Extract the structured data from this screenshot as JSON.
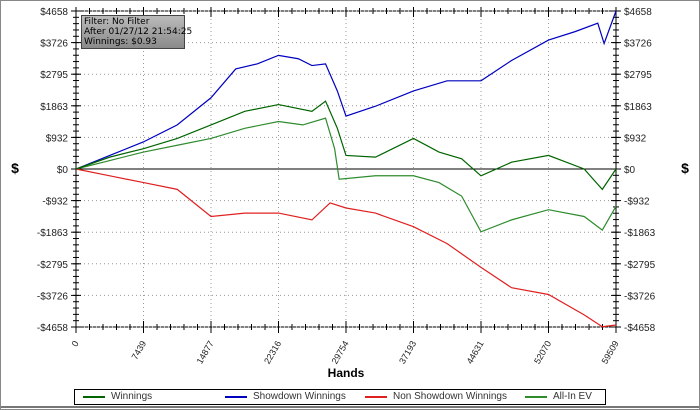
{
  "tooltip": {
    "line1": "Filter: No Filter",
    "line2": "After 01/27/12 21:54:25",
    "line3": "Winnings: $0.93"
  },
  "chart_data": {
    "type": "line",
    "xlabel": "Hands",
    "ylabel": "$",
    "xlim": [
      0,
      59509
    ],
    "ylim": [
      -4658,
      4658
    ],
    "x_ticks": [
      "0",
      "7439",
      "14877",
      "22316",
      "29754",
      "37193",
      "44631",
      "52070",
      "59509"
    ],
    "y_ticks": [
      "$4658",
      "$3726",
      "$2795",
      "$1863",
      "$932",
      "$0",
      "-$932",
      "-$1863",
      "-$2795",
      "-$3726",
      "-$4658"
    ],
    "grid": true,
    "legend_position": "bottom",
    "series": [
      {
        "name": "Winnings",
        "color": "#006400",
        "points": [
          [
            0,
            0
          ],
          [
            3720,
            350
          ],
          [
            7439,
            600
          ],
          [
            11158,
            900
          ],
          [
            14877,
            1300
          ],
          [
            18600,
            1700
          ],
          [
            22316,
            1900
          ],
          [
            26000,
            1700
          ],
          [
            27500,
            2000
          ],
          [
            28800,
            1200
          ],
          [
            29754,
            400
          ],
          [
            33000,
            350
          ],
          [
            37193,
            900
          ],
          [
            40000,
            500
          ],
          [
            42500,
            300
          ],
          [
            44631,
            -200
          ],
          [
            48000,
            200
          ],
          [
            52070,
            400
          ],
          [
            56000,
            0
          ],
          [
            58000,
            -600
          ],
          [
            59509,
            0
          ]
        ]
      },
      {
        "name": "Showdown Winnings",
        "color": "#0000c0",
        "points": [
          [
            0,
            0
          ],
          [
            3720,
            400
          ],
          [
            7439,
            800
          ],
          [
            11158,
            1300
          ],
          [
            14877,
            2100
          ],
          [
            17600,
            2950
          ],
          [
            20000,
            3100
          ],
          [
            22316,
            3350
          ],
          [
            24500,
            3250
          ],
          [
            26000,
            3050
          ],
          [
            27500,
            3100
          ],
          [
            28800,
            2300
          ],
          [
            29754,
            1560
          ],
          [
            33000,
            1850
          ],
          [
            37193,
            2300
          ],
          [
            40900,
            2600
          ],
          [
            44631,
            2600
          ],
          [
            48000,
            3200
          ],
          [
            52070,
            3800
          ],
          [
            55000,
            4050
          ],
          [
            57500,
            4300
          ],
          [
            58200,
            3700
          ],
          [
            59509,
            4658
          ]
        ]
      },
      {
        "name": "Non Showdown Winnings",
        "color": "#e02020",
        "points": [
          [
            0,
            0
          ],
          [
            3720,
            -200
          ],
          [
            7439,
            -400
          ],
          [
            11158,
            -600
          ],
          [
            14877,
            -1400
          ],
          [
            18600,
            -1300
          ],
          [
            22316,
            -1300
          ],
          [
            26000,
            -1500
          ],
          [
            28000,
            -1000
          ],
          [
            29754,
            -1150
          ],
          [
            33000,
            -1300
          ],
          [
            37193,
            -1700
          ],
          [
            40900,
            -2200
          ],
          [
            44631,
            -2900
          ],
          [
            48000,
            -3500
          ],
          [
            52070,
            -3700
          ],
          [
            56000,
            -4300
          ],
          [
            58000,
            -4650
          ],
          [
            59509,
            -4600
          ]
        ]
      },
      {
        "name": "All-In EV",
        "color": "#2e8b2e",
        "points": [
          [
            0,
            0
          ],
          [
            3720,
            250
          ],
          [
            7439,
            500
          ],
          [
            11158,
            700
          ],
          [
            14877,
            900
          ],
          [
            18600,
            1200
          ],
          [
            22316,
            1400
          ],
          [
            25000,
            1300
          ],
          [
            27500,
            1500
          ],
          [
            28500,
            600
          ],
          [
            29000,
            -300
          ],
          [
            33000,
            -200
          ],
          [
            37193,
            -200
          ],
          [
            40000,
            -400
          ],
          [
            42500,
            -800
          ],
          [
            44631,
            -1850
          ],
          [
            48000,
            -1500
          ],
          [
            52070,
            -1200
          ],
          [
            56000,
            -1400
          ],
          [
            58000,
            -1800
          ],
          [
            59509,
            -1100
          ]
        ]
      }
    ]
  }
}
